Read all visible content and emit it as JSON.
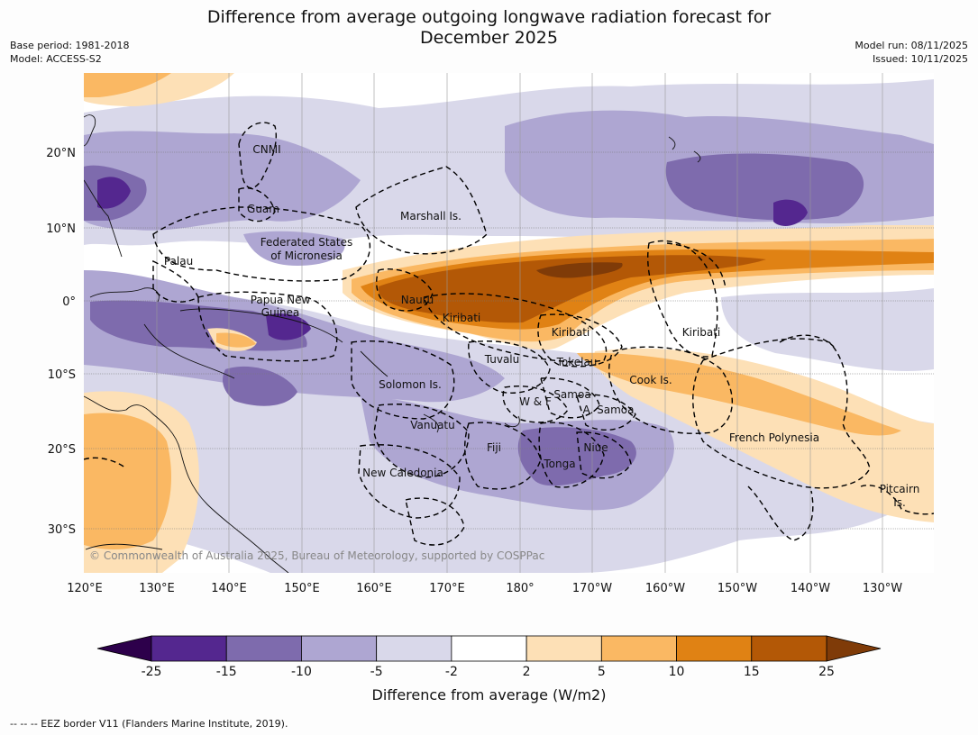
{
  "title_line1": "Difference from average outgoing longwave radiation forecast for",
  "title_line2": "December 2025",
  "meta": {
    "base_period": "Base period: 1981-2018",
    "model": "Model: ACCESS-S2",
    "model_run": "Model run: 08/11/2025",
    "issued": "Issued: 10/11/2025"
  },
  "lon_labels": [
    "120°E",
    "130°E",
    "140°E",
    "150°E",
    "160°E",
    "170°E",
    "180°",
    "170°W",
    "160°W",
    "150°W",
    "140°W",
    "130°W"
  ],
  "lat_labels": [
    "20°N",
    "10°N",
    "0°",
    "10°S",
    "20°S",
    "30°S"
  ],
  "region_labels": {
    "cnmi": "CNMI",
    "guam": "Guam",
    "marshall": "Marshall Is.",
    "fsm1": "Federated States",
    "fsm2": "of Micronesia",
    "palau": "Palau",
    "png1": "Papua New",
    "png2": "Guinea",
    "nauru": "Nauru",
    "kiribati1": "Kiribati",
    "kiribati2": "Kiribati",
    "kiribati3": "Kiribati",
    "tuvalu": "Tuvalu",
    "tokelau": "Tokelau",
    "cook": "Cook Is.",
    "solomon": "Solomon Is.",
    "wf": "W & F",
    "samoa": "Samoa",
    "asamoa": "A. Samoa",
    "vanuatu": "Vanuatu",
    "fiji": "Fiji",
    "niue": "Niue",
    "tonga": "Tonga",
    "frenchpoly": "French Polynesia",
    "newcal": "New Caledonia",
    "pitcairn1": "Pitcairn",
    "pitcairn2": "Is."
  },
  "copyright": "© Commonwealth of Australia 2025, Bureau of Meteorology, supported by COSPPac",
  "colorbar": {
    "ticks": [
      "-25",
      "-15",
      "-10",
      "-5",
      "-2",
      "2",
      "5",
      "10",
      "15",
      "25"
    ],
    "colors": [
      "#54278f",
      "#7e6bad",
      "#aea6d2",
      "#d9d8ea",
      "#ffffff",
      "#fde0b6",
      "#fab863",
      "#e08214",
      "#b35806"
    ],
    "extend_low": "#2d004b",
    "extend_high": "#7f3b08",
    "title": "Difference from average (W/m2)"
  },
  "footer": "--  --  -- EEZ border V11 (Flanders Marine Institute, 2019)."
}
